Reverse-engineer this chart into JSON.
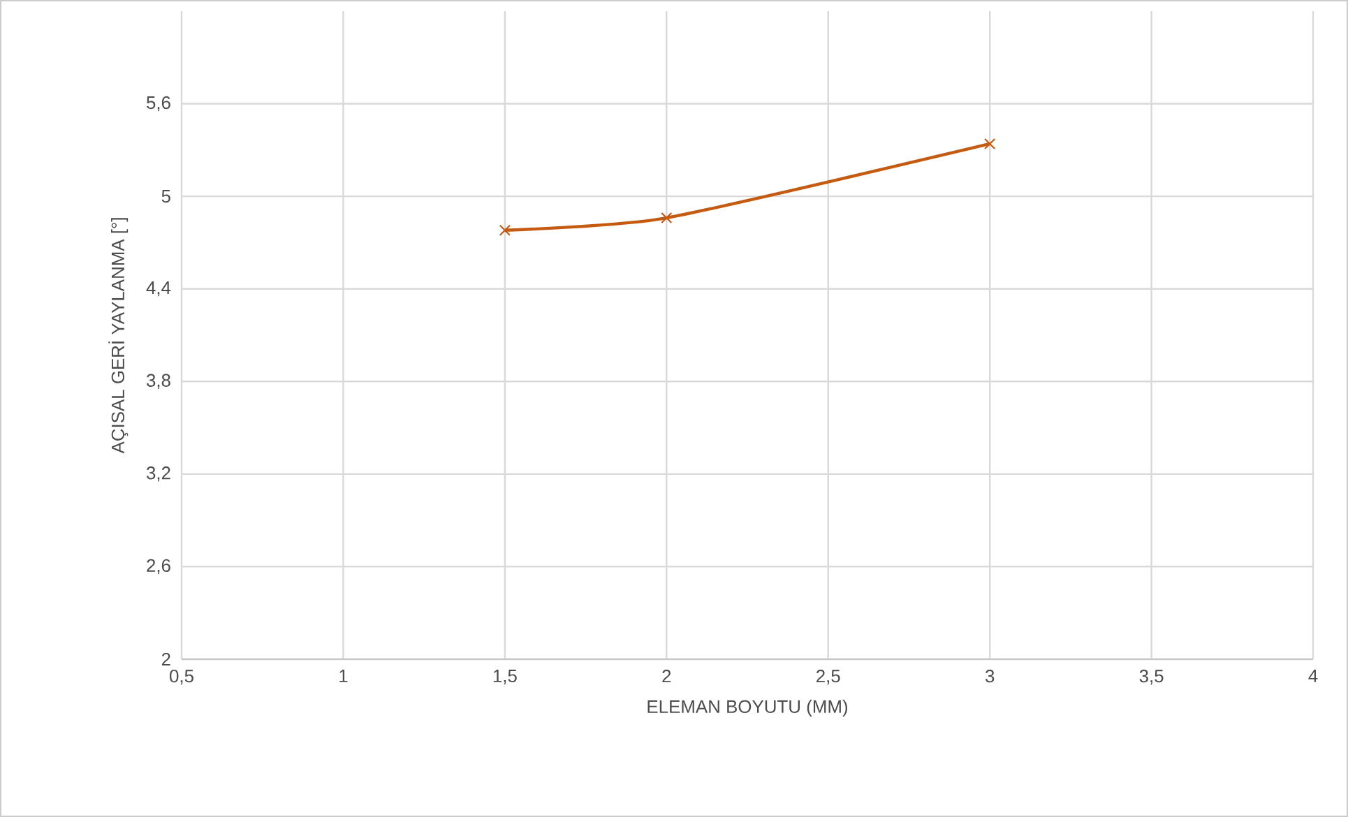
{
  "chart_data": {
    "type": "line",
    "xlabel": "ELEMAN BOYUTU (MM)",
    "ylabel": "AÇISAL GERİ YAYLANMA [°]",
    "x": [
      1.5,
      2,
      3
    ],
    "series": [
      {
        "color": "#c55a11",
        "values": [
          4.78,
          4.86,
          5.34
        ]
      }
    ],
    "xlim": [
      0.5,
      4
    ],
    "xticks": [
      {
        "value": 0.5,
        "label": "0,5"
      },
      1,
      {
        "value": 1.5,
        "label": "1,5"
      },
      2,
      {
        "value": 2.5,
        "label": "2,5"
      },
      3,
      {
        "value": 3.5,
        "label": "3,5"
      },
      4
    ],
    "ylim": [
      2,
      6.2
    ],
    "yticks": [
      2,
      {
        "value": 2.6,
        "label": "2,6"
      },
      {
        "value": 3.2,
        "label": "3,2"
      },
      {
        "value": 3.8,
        "label": "3,8"
      },
      {
        "value": 4.4,
        "label": "4,4"
      },
      5,
      {
        "value": 5.6,
        "label": "5,6"
      }
    ],
    "grid": true,
    "marker": "cross",
    "line_style": "solid"
  }
}
